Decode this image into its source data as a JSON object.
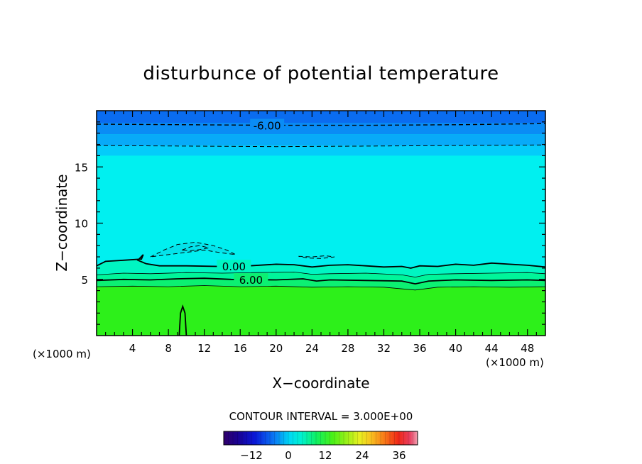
{
  "chart_data": {
    "type": "heatmap",
    "title": "disturbunce of potential temperature",
    "xlabel": "X−coordinate",
    "ylabel": "Z−coordinate",
    "x_unit_left": "(×1000 m)",
    "x_unit_right": "(×1000 m)",
    "xlim": [
      0,
      50
    ],
    "ylim": [
      0,
      20
    ],
    "x_ticks": [
      4,
      8,
      12,
      16,
      20,
      24,
      28,
      32,
      36,
      40,
      44,
      48
    ],
    "x_tick_labels": [
      "4",
      "8",
      "12",
      "16",
      "20",
      "24",
      "28",
      "32",
      "36",
      "40",
      "44",
      "48"
    ],
    "y_ticks": [
      5,
      10,
      15
    ],
    "y_tick_labels": [
      "5",
      "10",
      "15"
    ],
    "contour_interval_text": "CONTOUR INTERVAL = 3.000E+00",
    "contours": [
      {
        "label": "-6.00",
        "value": -6,
        "style": "dashed",
        "label_x": 19.0,
        "points": [
          [
            0,
            18.8
          ],
          [
            10,
            18.75
          ],
          [
            20,
            18.7
          ],
          [
            30,
            18.7
          ],
          [
            40,
            18.75
          ],
          [
            45,
            18.8
          ],
          [
            50,
            18.85
          ]
        ]
      },
      {
        "value": -3,
        "style": "dashed",
        "points": [
          [
            0,
            16.9
          ],
          [
            10,
            16.85
          ],
          [
            20,
            16.8
          ],
          [
            30,
            16.85
          ],
          [
            40,
            16.9
          ],
          [
            50,
            16.95
          ]
        ]
      },
      {
        "label": "0.00",
        "value": 0,
        "style": "solid",
        "label_x": 15.3,
        "points": [
          [
            0,
            6.2
          ],
          [
            1,
            6.6
          ],
          [
            3,
            6.7
          ],
          [
            5,
            6.8
          ],
          [
            5.2,
            7.2
          ],
          [
            4.6,
            6.7
          ],
          [
            5.5,
            6.4
          ],
          [
            7,
            6.2
          ],
          [
            10,
            6.2
          ],
          [
            13.5,
            6.15
          ],
          [
            17,
            6.2
          ],
          [
            20,
            6.35
          ],
          [
            22,
            6.3
          ],
          [
            24,
            6.1
          ],
          [
            26,
            6.25
          ],
          [
            28,
            6.3
          ],
          [
            30,
            6.2
          ],
          [
            32,
            6.1
          ],
          [
            34,
            6.15
          ],
          [
            35,
            6.0
          ],
          [
            36,
            6.2
          ],
          [
            38,
            6.15
          ],
          [
            40,
            6.35
          ],
          [
            42,
            6.25
          ],
          [
            44,
            6.45
          ],
          [
            46,
            6.35
          ],
          [
            48,
            6.25
          ],
          [
            50,
            6.1
          ]
        ]
      },
      {
        "value": 3,
        "style": "thin",
        "points": [
          [
            0,
            5.4
          ],
          [
            3,
            5.55
          ],
          [
            6,
            5.5
          ],
          [
            10,
            5.6
          ],
          [
            14,
            5.55
          ],
          [
            18,
            5.6
          ],
          [
            22,
            5.65
          ],
          [
            24,
            5.45
          ],
          [
            26,
            5.5
          ],
          [
            30,
            5.55
          ],
          [
            34,
            5.4
          ],
          [
            35.5,
            5.2
          ],
          [
            37,
            5.45
          ],
          [
            40,
            5.5
          ],
          [
            44,
            5.55
          ],
          [
            48,
            5.6
          ],
          [
            50,
            5.5
          ]
        ]
      },
      {
        "label": "6.00",
        "value": 6,
        "style": "solid",
        "label_x": 17.2,
        "points": [
          [
            0,
            4.9
          ],
          [
            3,
            5.0
          ],
          [
            6,
            4.95
          ],
          [
            9,
            5.05
          ],
          [
            12,
            5.1
          ],
          [
            15,
            5.0
          ],
          [
            20,
            4.95
          ],
          [
            23,
            5.05
          ],
          [
            24.5,
            4.85
          ],
          [
            26,
            4.95
          ],
          [
            30,
            4.9
          ],
          [
            34,
            4.85
          ],
          [
            35.5,
            4.6
          ],
          [
            37,
            4.85
          ],
          [
            40,
            4.95
          ],
          [
            44,
            4.9
          ],
          [
            48,
            4.95
          ],
          [
            50,
            4.9
          ]
        ]
      },
      {
        "value": 9,
        "style": "thin",
        "points": [
          [
            0,
            4.35
          ],
          [
            4,
            4.4
          ],
          [
            8,
            4.35
          ],
          [
            12,
            4.45
          ],
          [
            16,
            4.35
          ],
          [
            20,
            4.4
          ],
          [
            24,
            4.3
          ],
          [
            28,
            4.35
          ],
          [
            32,
            4.3
          ],
          [
            35.5,
            4.05
          ],
          [
            38,
            4.3
          ],
          [
            42,
            4.35
          ],
          [
            46,
            4.3
          ],
          [
            50,
            4.35
          ]
        ]
      },
      {
        "value": 12,
        "style": "solid",
        "points": [
          [
            9.2,
            0
          ],
          [
            9.35,
            2.0
          ],
          [
            9.6,
            2.6
          ],
          [
            9.85,
            2.0
          ],
          [
            10.0,
            0
          ]
        ]
      },
      {
        "value": -3,
        "style": "dashed",
        "points": [
          [
            6,
            7.0
          ],
          [
            7.5,
            7.6
          ],
          [
            9,
            8.1
          ],
          [
            11,
            8.3
          ],
          [
            13,
            8.0
          ],
          [
            14.5,
            7.6
          ],
          [
            15.5,
            7.2
          ],
          [
            14,
            7.35
          ],
          [
            12,
            7.6
          ],
          [
            10,
            7.4
          ],
          [
            8,
            7.2
          ],
          [
            6,
            7.0
          ]
        ]
      },
      {
        "value": -6,
        "style": "dashed",
        "points": [
          [
            9.5,
            7.6
          ],
          [
            10.5,
            7.9
          ],
          [
            11.5,
            8.0
          ],
          [
            12.5,
            7.8
          ],
          [
            11.5,
            7.65
          ],
          [
            10.5,
            7.55
          ],
          [
            9.5,
            7.6
          ]
        ]
      },
      {
        "value": -3,
        "style": "dashed",
        "points": [
          [
            22.5,
            7.05
          ],
          [
            24,
            7.0
          ],
          [
            25.5,
            7.1
          ],
          [
            26.5,
            7.0
          ],
          [
            25,
            6.85
          ],
          [
            23.5,
            6.9
          ],
          [
            22.5,
            7.05
          ]
        ]
      }
    ],
    "colorbar": {
      "range": [
        -21,
        42
      ],
      "tick_labels": [
        "−12",
        "0",
        "12",
        "24",
        "36"
      ],
      "tick_values": [
        -12,
        0,
        12,
        24,
        36
      ]
    },
    "colors": {
      "top": "#0a6cf0",
      "upper1": "#0a8cf5",
      "upper2": "#08aaf8",
      "upper3": "#04ccfa",
      "mid": "#00f0f0",
      "mid_patch": "#04e2ea",
      "band1": "#00f5c2",
      "band2": "#00f59a",
      "band3": "#0cf072",
      "low": "#2df01a"
    }
  }
}
